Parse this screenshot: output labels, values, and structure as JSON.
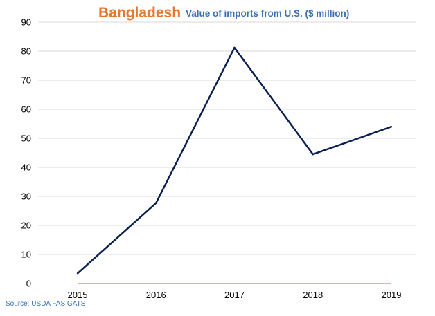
{
  "colors": {
    "title": "#E8762B",
    "subtitle": "#3A6FB5",
    "series_line": "#0B1F4E",
    "zero_line": "#F2C418",
    "gridline": "#D9D9D9",
    "source": "#3A6FB5"
  },
  "chart_data": {
    "type": "line",
    "title": "Bangladesh",
    "subtitle": "Value of imports from U.S. ($ million)",
    "xlabel": "",
    "ylabel": "",
    "x": [
      "2015",
      "2016",
      "2017",
      "2018",
      "2019"
    ],
    "ylim": [
      0,
      90
    ],
    "yticks": [
      0,
      10,
      20,
      30,
      40,
      50,
      60,
      70,
      80,
      90
    ],
    "series": [
      {
        "values": [
          3.5,
          27.7,
          81.2,
          44.5,
          54.0
        ]
      }
    ],
    "grid": true,
    "legend": "none"
  },
  "source": "Source: USDA FAS GATS"
}
